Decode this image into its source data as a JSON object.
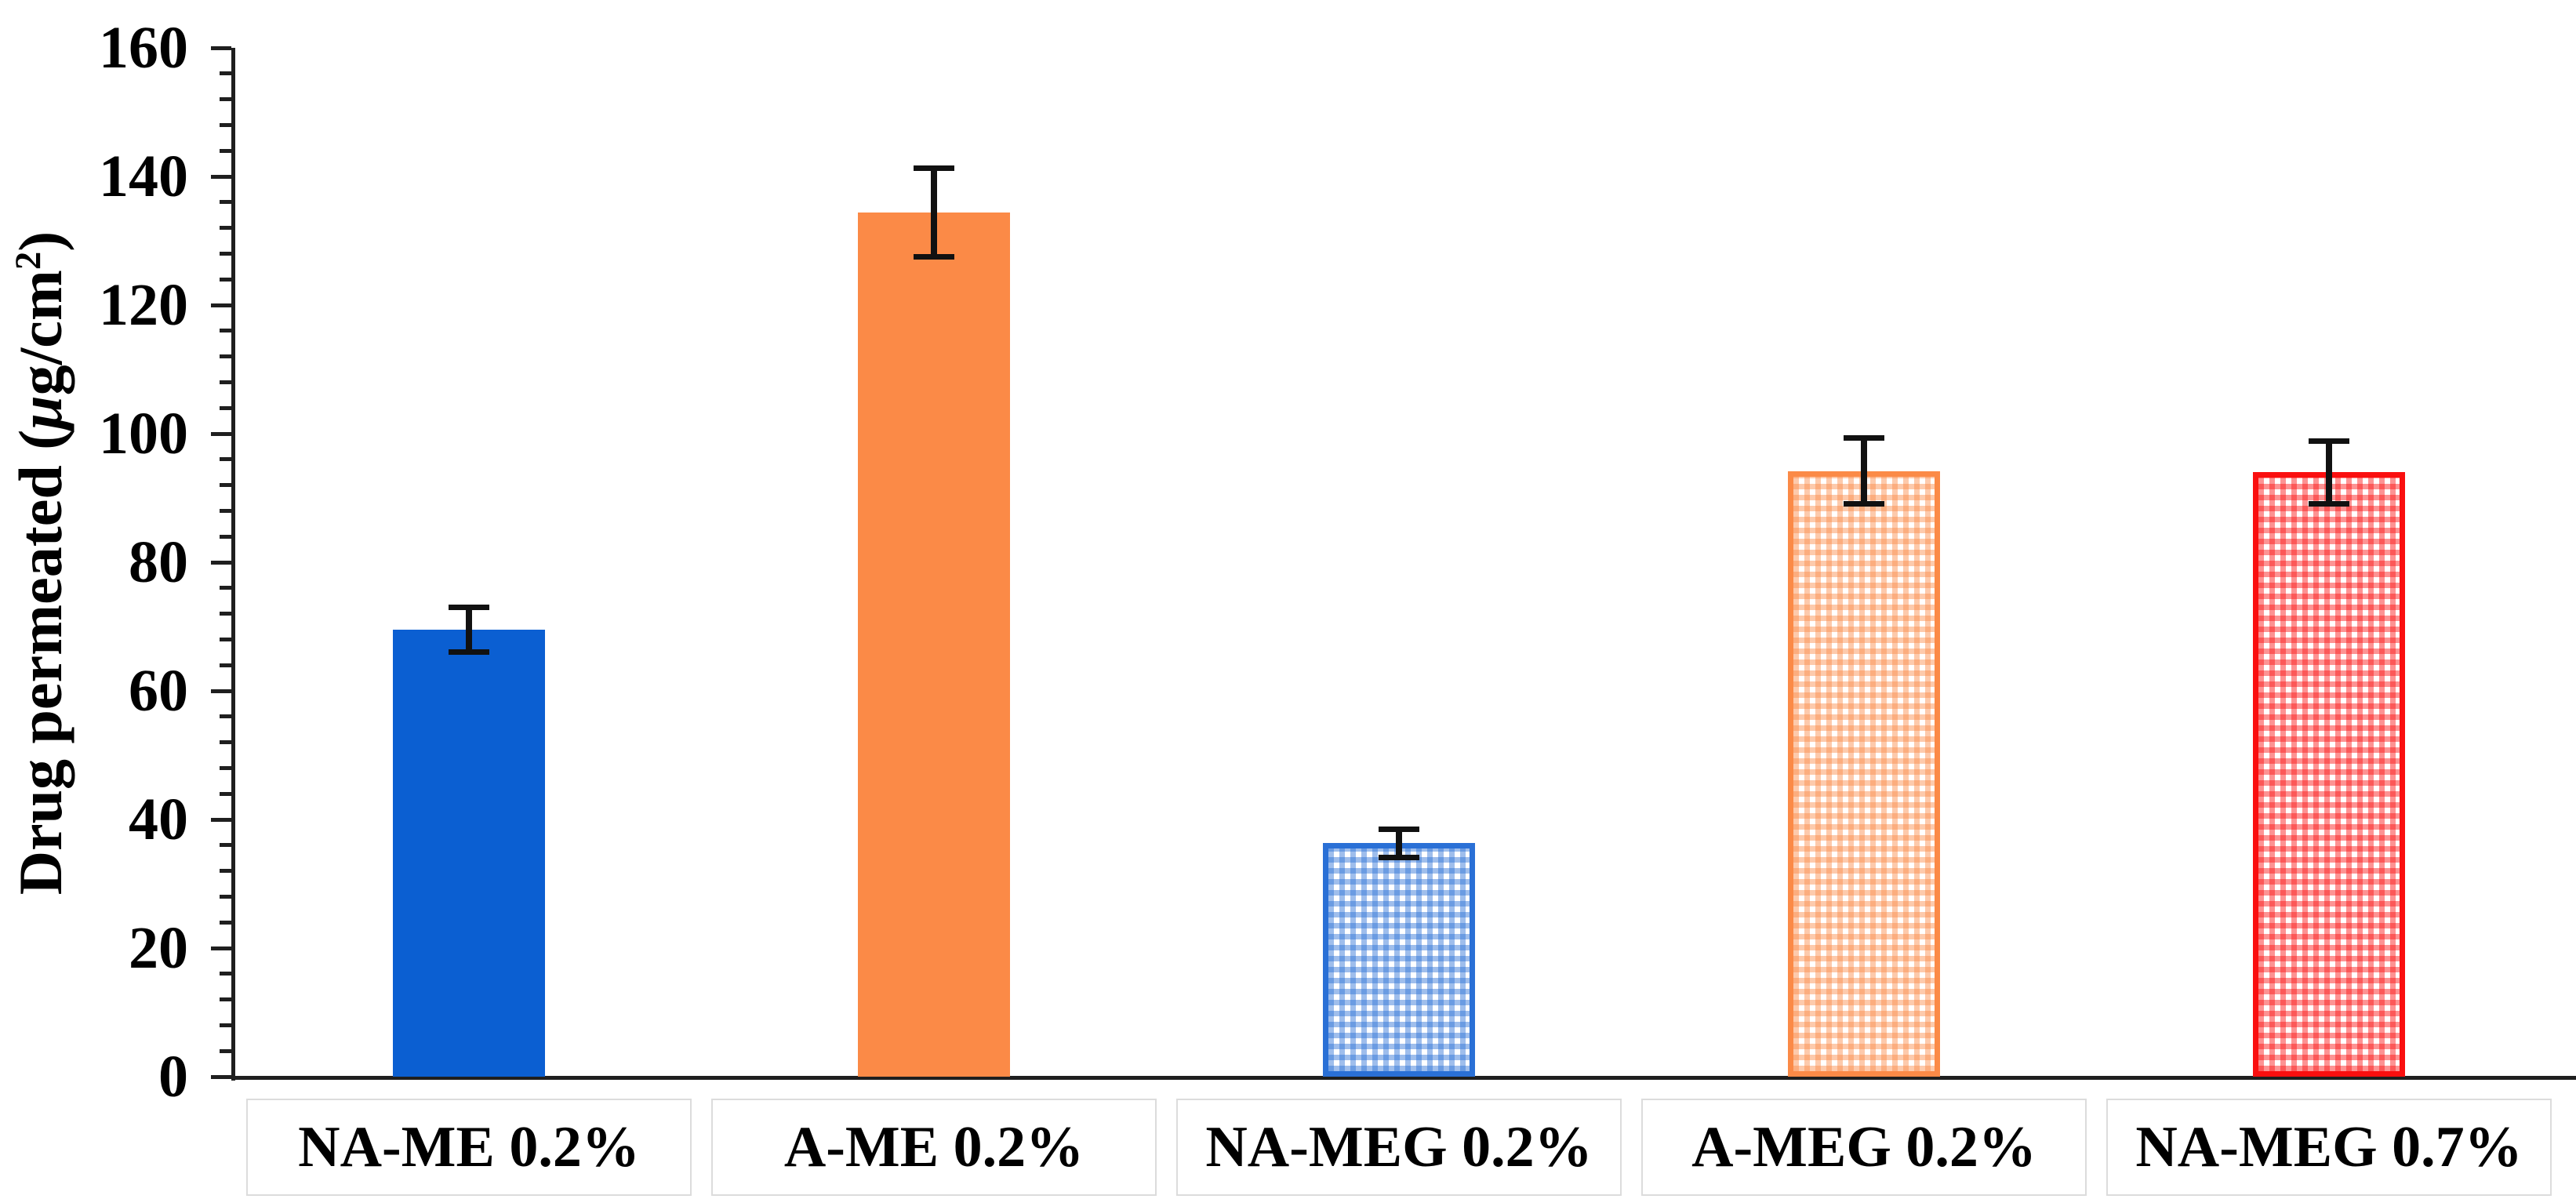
{
  "chart_data": {
    "type": "bar",
    "title": "",
    "xlabel": "",
    "ylabel": "Drug permeated (μg/cm²)",
    "ylabel_parts": {
      "prefix": "Drug permeated (",
      "mu": "μ",
      "mid": "g/cm",
      "sup": "2",
      "suffix": ")"
    },
    "ylim": [
      0,
      160
    ],
    "ytick_major": 20,
    "ytick_minor": 4,
    "grid": false,
    "legend_position": "none",
    "categories": [
      "NA-ME 0.2%",
      "A-ME 0.2%",
      "NA-MEG 0.2%",
      "A-MEG 0.2%",
      "NA-MEG 0.7%"
    ],
    "series": [
      {
        "name": "Drug permeated",
        "values": [
          69.5,
          134.4,
          36.3,
          94.2,
          94.0
        ],
        "errors": [
          3.5,
          6.9,
          2.2,
          5.1,
          4.9
        ]
      }
    ],
    "bar_styles": [
      {
        "fill": "solid",
        "color": "#0B5FD2"
      },
      {
        "fill": "solid",
        "color": "#FB8A47"
      },
      {
        "fill": "pattern-grid",
        "color": "#2A70D6"
      },
      {
        "fill": "pattern-grid",
        "color": "#FB8A47"
      },
      {
        "fill": "pattern-grid",
        "color": "#FA0F0F"
      }
    ],
    "axis_color": "#1f1f1f",
    "error_bar_color": "#111111",
    "background_color": "#ffffff"
  }
}
